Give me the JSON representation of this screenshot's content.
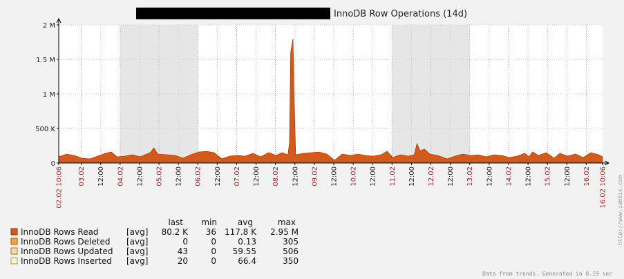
{
  "title": {
    "text": "InnoDB Row Operations  (14d)"
  },
  "colors": {
    "background": "#f2f2f2",
    "plot_area": "#ffffff",
    "weekend_shade": "#e6e6e6",
    "grid": "#cccccc",
    "axis": "#000000",
    "series_read": "#d35a1b",
    "series_read_border": "#8a3200",
    "date_label": "#9e2a2a",
    "redaction": "#000000"
  },
  "chart_data": {
    "type": "area",
    "title": "InnoDB Row Operations  (14d)",
    "ylim": [
      0,
      2000000
    ],
    "yticks": [
      {
        "value": 0,
        "label": "0"
      },
      {
        "value": 500000,
        "label": "500 K"
      },
      {
        "value": 1000000,
        "label": "1 M"
      },
      {
        "value": 1500000,
        "label": "1.5 M"
      },
      {
        "value": 2000000,
        "label": "2 M"
      }
    ],
    "x_range_days": [
      0,
      14
    ],
    "xticks": [
      {
        "day": 0.0,
        "label": "02.02 10:06",
        "kind": "edge"
      },
      {
        "day": 0.58,
        "label": "03.02",
        "kind": "date"
      },
      {
        "day": 1.08,
        "label": "12:00",
        "kind": "time"
      },
      {
        "day": 1.58,
        "label": "04.02",
        "kind": "date"
      },
      {
        "day": 2.08,
        "label": "12:00",
        "kind": "time"
      },
      {
        "day": 2.58,
        "label": "05.02",
        "kind": "date"
      },
      {
        "day": 3.08,
        "label": "12:00",
        "kind": "time"
      },
      {
        "day": 3.58,
        "label": "06.02",
        "kind": "date"
      },
      {
        "day": 4.08,
        "label": "12:00",
        "kind": "time"
      },
      {
        "day": 4.58,
        "label": "07.02",
        "kind": "date"
      },
      {
        "day": 5.08,
        "label": "12:00",
        "kind": "time"
      },
      {
        "day": 5.58,
        "label": "08.02",
        "kind": "date"
      },
      {
        "day": 6.08,
        "label": "12:00",
        "kind": "time"
      },
      {
        "day": 6.58,
        "label": "09.02",
        "kind": "date"
      },
      {
        "day": 7.08,
        "label": "12:00",
        "kind": "time"
      },
      {
        "day": 7.58,
        "label": "10.02",
        "kind": "date"
      },
      {
        "day": 8.08,
        "label": "12:00",
        "kind": "time"
      },
      {
        "day": 8.58,
        "label": "11.02",
        "kind": "date"
      },
      {
        "day": 9.08,
        "label": "12:00",
        "kind": "time"
      },
      {
        "day": 9.58,
        "label": "12.02",
        "kind": "date"
      },
      {
        "day": 10.08,
        "label": "12:00",
        "kind": "time"
      },
      {
        "day": 10.58,
        "label": "13.02",
        "kind": "date"
      },
      {
        "day": 11.08,
        "label": "12:00",
        "kind": "time"
      },
      {
        "day": 11.58,
        "label": "14.02",
        "kind": "date"
      },
      {
        "day": 12.08,
        "label": "12:00",
        "kind": "time"
      },
      {
        "day": 12.58,
        "label": "15.02",
        "kind": "date"
      },
      {
        "day": 13.08,
        "label": "12:00",
        "kind": "time"
      },
      {
        "day": 13.58,
        "label": "16.02",
        "kind": "date"
      },
      {
        "day": 14.0,
        "label": "16.02 10:06",
        "kind": "edge"
      }
    ],
    "weekend_bands": [
      [
        1.58,
        3.58
      ],
      [
        8.58,
        10.58
      ]
    ],
    "series": [
      {
        "name": "InnoDB Rows Read",
        "fn": "[avg]",
        "color": "#d35a1b",
        "points": [
          [
            0.0,
            90000
          ],
          [
            0.2,
            130000
          ],
          [
            0.4,
            110000
          ],
          [
            0.6,
            70000
          ],
          [
            0.8,
            60000
          ],
          [
            1.0,
            100000
          ],
          [
            1.2,
            140000
          ],
          [
            1.35,
            160000
          ],
          [
            1.5,
            90000
          ],
          [
            1.7,
            100000
          ],
          [
            1.9,
            120000
          ],
          [
            2.1,
            90000
          ],
          [
            2.35,
            150000
          ],
          [
            2.45,
            220000
          ],
          [
            2.55,
            130000
          ],
          [
            2.8,
            120000
          ],
          [
            3.0,
            110000
          ],
          [
            3.2,
            70000
          ],
          [
            3.4,
            120000
          ],
          [
            3.6,
            160000
          ],
          [
            3.8,
            170000
          ],
          [
            4.0,
            150000
          ],
          [
            4.2,
            60000
          ],
          [
            4.4,
            100000
          ],
          [
            4.6,
            110000
          ],
          [
            4.8,
            100000
          ],
          [
            5.0,
            140000
          ],
          [
            5.2,
            90000
          ],
          [
            5.4,
            150000
          ],
          [
            5.6,
            110000
          ],
          [
            5.75,
            150000
          ],
          [
            5.85,
            130000
          ],
          [
            5.9,
            120000
          ],
          [
            5.94,
            300000
          ],
          [
            5.97,
            1600000
          ],
          [
            6.0,
            1700000
          ],
          [
            6.03,
            1800000
          ],
          [
            6.06,
            950000
          ],
          [
            6.1,
            120000
          ],
          [
            6.3,
            140000
          ],
          [
            6.5,
            150000
          ],
          [
            6.7,
            160000
          ],
          [
            6.9,
            130000
          ],
          [
            7.1,
            40000
          ],
          [
            7.3,
            130000
          ],
          [
            7.5,
            110000
          ],
          [
            7.7,
            130000
          ],
          [
            7.9,
            110000
          ],
          [
            8.1,
            100000
          ],
          [
            8.3,
            120000
          ],
          [
            8.45,
            170000
          ],
          [
            8.6,
            80000
          ],
          [
            8.8,
            120000
          ],
          [
            9.0,
            100000
          ],
          [
            9.15,
            120000
          ],
          [
            9.22,
            280000
          ],
          [
            9.3,
            180000
          ],
          [
            9.42,
            200000
          ],
          [
            9.55,
            130000
          ],
          [
            9.75,
            110000
          ],
          [
            10.0,
            60000
          ],
          [
            10.2,
            100000
          ],
          [
            10.4,
            130000
          ],
          [
            10.6,
            110000
          ],
          [
            10.8,
            120000
          ],
          [
            11.0,
            90000
          ],
          [
            11.2,
            120000
          ],
          [
            11.4,
            110000
          ],
          [
            11.6,
            80000
          ],
          [
            11.8,
            100000
          ],
          [
            12.0,
            140000
          ],
          [
            12.1,
            90000
          ],
          [
            12.2,
            160000
          ],
          [
            12.35,
            110000
          ],
          [
            12.55,
            150000
          ],
          [
            12.75,
            70000
          ],
          [
            12.9,
            140000
          ],
          [
            13.1,
            100000
          ],
          [
            13.3,
            130000
          ],
          [
            13.5,
            80000
          ],
          [
            13.7,
            150000
          ],
          [
            13.9,
            120000
          ],
          [
            14.0,
            90000
          ]
        ]
      }
    ]
  },
  "legend": {
    "headers": {
      "last": "last",
      "min": "min",
      "avg": "avg",
      "max": "max"
    },
    "rows": [
      {
        "name": "InnoDB Rows Read",
        "fn": "[avg]",
        "last": "80.2 K",
        "min": "36",
        "avg": "117.8 K",
        "max": "2.95 M",
        "color": "#d35a1b",
        "border": "#8a3200"
      },
      {
        "name": "InnoDB Rows Deleted",
        "fn": "[avg]",
        "last": "0",
        "min": "0",
        "avg": "0.13",
        "max": "305",
        "color": "#f5a14a",
        "border": "#a85c00"
      },
      {
        "name": "InnoDB Rows Updated",
        "fn": "[avg]",
        "last": "43",
        "min": "0",
        "avg": "59.55",
        "max": "506",
        "color": "#fbd9a0",
        "border": "#a07a30"
      },
      {
        "name": "InnoDB Rows Inserted",
        "fn": "[avg]",
        "last": "20",
        "min": "0",
        "avg": "66.4",
        "max": "350",
        "color": "#fff6c8",
        "border": "#a09a60"
      }
    ]
  },
  "footer": {
    "generated": "Data from trends. Generated in 0.19 sec",
    "watermark": "http://www.zabbix.com"
  }
}
